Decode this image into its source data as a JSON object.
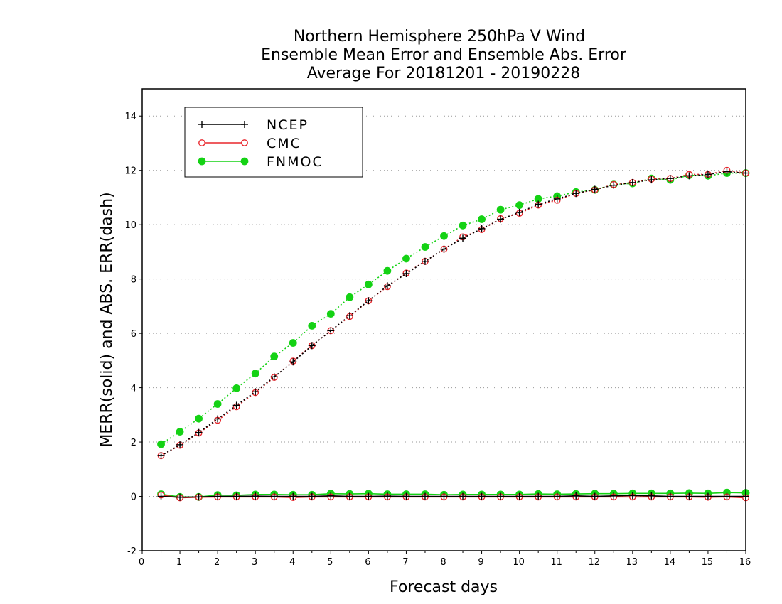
{
  "chart_data": {
    "type": "line",
    "title": [
      "Northern Hemisphere 250hPa V Wind",
      "Ensemble Mean Error and Ensemble Abs. Error",
      "Average For 20181201 - 20190228"
    ],
    "xlabel": "Forecast days",
    "ylabel": "MERR(solid) and ABS. ERR(dash)",
    "xlim": [
      0,
      16
    ],
    "ylim": [
      -2,
      15
    ],
    "xticks": [
      0,
      1,
      2,
      3,
      4,
      5,
      6,
      7,
      8,
      9,
      10,
      11,
      12,
      13,
      14,
      15,
      16
    ],
    "yticks": [
      -2,
      0,
      2,
      4,
      6,
      8,
      10,
      12,
      14
    ],
    "grid": "horizontal dotted",
    "legend_position": "top-left",
    "x": [
      0.5,
      1,
      1.5,
      2,
      2.5,
      3,
      3.5,
      4,
      4.5,
      5,
      5.5,
      6,
      6.5,
      7,
      7.5,
      8,
      8.5,
      9,
      9.5,
      10,
      10.5,
      11,
      11.5,
      12,
      12.5,
      13,
      13.5,
      14,
      14.5,
      15,
      15.5,
      16
    ],
    "series": [
      {
        "name": "NCEP",
        "color": "#000000",
        "marker": "plus",
        "abs_error": [
          1.5,
          1.9,
          2.35,
          2.85,
          3.35,
          3.85,
          4.4,
          4.95,
          5.55,
          6.1,
          6.65,
          7.2,
          7.75,
          8.2,
          8.65,
          9.1,
          9.5,
          9.85,
          10.2,
          10.45,
          10.75,
          10.95,
          11.15,
          11.3,
          11.45,
          11.55,
          11.65,
          11.7,
          11.8,
          11.85,
          11.95,
          11.9
        ],
        "mean_error": [
          0.0,
          -0.03,
          -0.02,
          0.0,
          0.0,
          0.01,
          0.0,
          0.0,
          0.0,
          0.02,
          0.0,
          0.0,
          0.01,
          0.0,
          0.0,
          0.0,
          0.0,
          0.0,
          0.0,
          0.0,
          0.0,
          0.0,
          0.02,
          0.0,
          0.02,
          0.03,
          0.02,
          0.0,
          0.0,
          0.0,
          0.0,
          0.0
        ]
      },
      {
        "name": "CMC",
        "color": "#e8262c",
        "marker": "open-circle",
        "abs_error": [
          1.5,
          1.88,
          2.33,
          2.8,
          3.3,
          3.82,
          4.38,
          4.98,
          5.55,
          6.1,
          6.62,
          7.2,
          7.72,
          8.22,
          8.65,
          9.1,
          9.55,
          9.82,
          10.22,
          10.42,
          10.72,
          10.9,
          11.15,
          11.28,
          11.48,
          11.55,
          11.68,
          11.7,
          11.85,
          11.85,
          12.0,
          11.9
        ],
        "mean_error": [
          0.05,
          -0.05,
          -0.03,
          -0.02,
          -0.02,
          -0.02,
          -0.02,
          -0.04,
          -0.02,
          -0.02,
          -0.02,
          -0.02,
          -0.02,
          -0.02,
          -0.02,
          -0.02,
          -0.02,
          -0.02,
          -0.02,
          -0.02,
          -0.02,
          -0.02,
          -0.02,
          -0.02,
          -0.02,
          -0.02,
          -0.02,
          -0.02,
          -0.02,
          -0.03,
          -0.02,
          -0.05
        ]
      },
      {
        "name": "FNMOC",
        "color": "#14d214",
        "marker": "filled-circle",
        "abs_error": [
          1.92,
          2.38,
          2.86,
          3.4,
          3.98,
          4.52,
          5.15,
          5.65,
          6.28,
          6.72,
          7.33,
          7.8,
          8.3,
          8.75,
          9.18,
          9.58,
          9.97,
          10.2,
          10.55,
          10.72,
          10.95,
          11.05,
          11.2,
          11.28,
          11.48,
          11.52,
          11.7,
          11.65,
          11.82,
          11.8,
          11.9,
          11.9
        ],
        "mean_error": [
          0.08,
          -0.02,
          -0.02,
          0.05,
          0.04,
          0.07,
          0.07,
          0.06,
          0.06,
          0.1,
          0.09,
          0.1,
          0.08,
          0.08,
          0.08,
          0.06,
          0.07,
          0.07,
          0.07,
          0.07,
          0.09,
          0.08,
          0.09,
          0.1,
          0.1,
          0.11,
          0.11,
          0.11,
          0.12,
          0.11,
          0.14,
          0.13
        ]
      }
    ]
  }
}
